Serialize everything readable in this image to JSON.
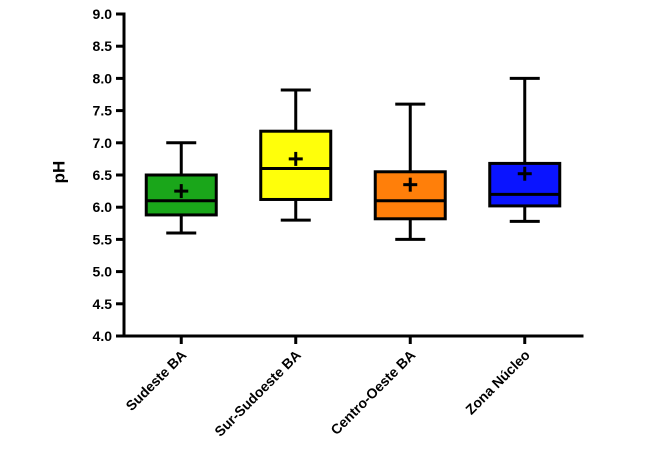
{
  "chart_data": {
    "type": "box",
    "title": "",
    "xlabel": "",
    "ylabel": "pH",
    "ylim": [
      4.0,
      9.0
    ],
    "yticks": [
      "4.0",
      "4.5",
      "5.0",
      "5.5",
      "6.0",
      "6.5",
      "7.0",
      "7.5",
      "8.0",
      "8.5",
      "9.0"
    ],
    "grid": false,
    "categories": [
      "Sudeste BA",
      "Sur-Sudoeste BA",
      "Centro-Oeste BA",
      "Zona Núcleo"
    ],
    "boxes": [
      {
        "category": "Sudeste BA",
        "min": 5.6,
        "q1": 5.88,
        "median": 6.1,
        "q3": 6.5,
        "max": 7.0,
        "mean": 6.25,
        "color": "#1aa61a"
      },
      {
        "category": "Sur-Sudoeste BA",
        "min": 5.8,
        "q1": 6.12,
        "median": 6.6,
        "q3": 7.18,
        "max": 7.82,
        "mean": 6.75,
        "color": "#ffff0a"
      },
      {
        "category": "Centro-Oeste BA",
        "min": 5.5,
        "q1": 5.82,
        "median": 6.1,
        "q3": 6.55,
        "max": 7.6,
        "mean": 6.35,
        "color": "#ff7f0a"
      },
      {
        "category": "Zona Núcleo",
        "min": 5.78,
        "q1": 6.02,
        "median": 6.2,
        "q3": 6.68,
        "max": 8.0,
        "mean": 6.52,
        "color": "#0a14ff"
      }
    ]
  }
}
